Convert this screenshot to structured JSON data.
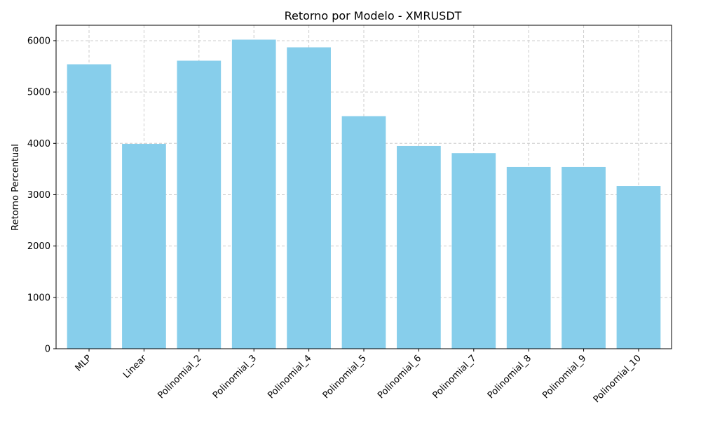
{
  "chart_data": {
    "type": "bar",
    "title": "Retorno por Modelo - XMRUSDT",
    "xlabel": "",
    "ylabel": "Retorno Percentual",
    "categories": [
      "MLP",
      "Linear",
      "Polinomial_2",
      "Polinomial_3",
      "Polinomial_4",
      "Polinomial_5",
      "Polinomial_6",
      "Polinomial_7",
      "Polinomial_8",
      "Polinomial_9",
      "Polinomial_10"
    ],
    "values": [
      5540,
      3990,
      5610,
      6020,
      5870,
      4530,
      3950,
      3810,
      3540,
      3540,
      3170
    ],
    "ylim": [
      0,
      6300
    ],
    "yticks": [
      0,
      1000,
      2000,
      3000,
      4000,
      5000,
      6000
    ],
    "grid": true,
    "bar_color": "#87ceeb",
    "grid_color": "#cccccc"
  }
}
